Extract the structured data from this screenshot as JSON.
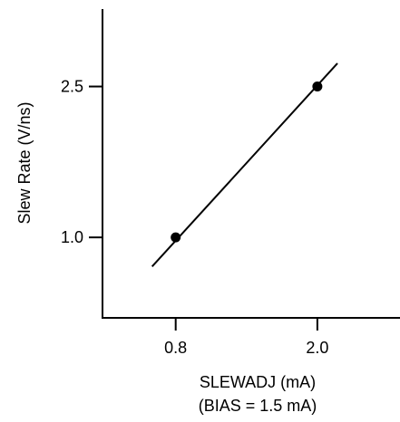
{
  "chart_data": {
    "type": "scatter",
    "title": "",
    "xlabel": "SLEWADJ (mA)",
    "xlabel_note": "(BIAS = 1.5 mA)",
    "ylabel": "Slew Rate (V/ns)",
    "x_ticks": [
      {
        "value": 0.8,
        "label": "0.8"
      },
      {
        "value": 2.0,
        "label": "2.0"
      }
    ],
    "y_ticks": [
      {
        "value": 1.0,
        "label": "1.0"
      },
      {
        "value": 2.5,
        "label": "2.5"
      }
    ],
    "xlim": [
      0.18,
      2.7
    ],
    "ylim": [
      0.2,
      3.27
    ],
    "points": [
      {
        "x": 0.8,
        "y": 1.0
      },
      {
        "x": 2.0,
        "y": 2.5
      }
    ],
    "trend_line": {
      "x": [
        0.6,
        2.17
      ],
      "y": [
        0.71,
        2.73
      ]
    },
    "grid": false,
    "legend": "none",
    "colors": {
      "ink": "#000000",
      "background": "#ffffff"
    }
  }
}
